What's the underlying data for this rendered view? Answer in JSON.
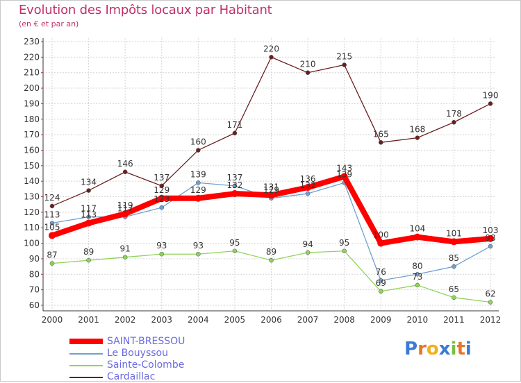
{
  "title": "Evolution des Impôts locaux par Habitant",
  "subtitle": "(en € et par an)",
  "brand": "Proxiti",
  "chart_data": {
    "type": "line",
    "title": "Evolution des Impôts locaux par Habitant",
    "subtitle": "(en € et par an)",
    "xlabel": "",
    "ylabel": "",
    "categories": [
      "2000",
      "2001",
      "2002",
      "2003",
      "2004",
      "2005",
      "2006",
      "2007",
      "2008",
      "2009",
      "2010",
      "2011",
      "2012"
    ],
    "ylim": [
      60,
      230
    ],
    "yticks": [
      60,
      70,
      80,
      90,
      100,
      110,
      120,
      130,
      140,
      150,
      160,
      170,
      180,
      190,
      200,
      210,
      220,
      230
    ],
    "grid": true,
    "legend_position": "bottom-left",
    "series": [
      {
        "name": "Cardaillac",
        "color": "#6b1f1f",
        "values": [
          124,
          134,
          146,
          137,
          160,
          171,
          220,
          210,
          215,
          165,
          168,
          178,
          190
        ]
      },
      {
        "name": "Sainte-Colombe",
        "color": "#8fd45a",
        "values": [
          87,
          89,
          91,
          93,
          93,
          95,
          89,
          94,
          95,
          69,
          73,
          65,
          62
        ]
      },
      {
        "name": "Le Bouyssou",
        "color": "#6e9fd0",
        "values": [
          113,
          117,
          117,
          123,
          139,
          137,
          129,
          132,
          139,
          76,
          80,
          85,
          98
        ]
      },
      {
        "name": "SAINT-BRESSOU",
        "color": "#ff0000",
        "values": [
          105,
          113,
          119,
          129,
          129,
          132,
          131,
          136,
          143,
          100,
          104,
          101,
          103
        ]
      }
    ],
    "data_labels": [
      [
        "124",
        "134",
        "146",
        "137",
        "160",
        "171",
        "220",
        "210",
        "215",
        "165",
        "168",
        "178",
        "190"
      ],
      [
        "87",
        "89",
        "91",
        "93",
        "93",
        "95",
        "89",
        "94",
        "95",
        "69",
        "73",
        "65",
        "62"
      ],
      [
        "113",
        "117",
        "117",
        "123",
        "139",
        "137",
        "129",
        "132",
        "139",
        "76",
        "80",
        "85",
        "98"
      ],
      [
        "105",
        "113",
        "119",
        "129",
        "129",
        "132",
        "131",
        "136",
        "143",
        "100",
        "104",
        "101",
        "103"
      ]
    ]
  },
  "legend": [
    {
      "name": "SAINT-BRESSOU",
      "color": "#ff0000",
      "thick": true
    },
    {
      "name": "Le Bouyssou",
      "color": "#6e9fd0",
      "thick": false
    },
    {
      "name": "Sainte-Colombe",
      "color": "#8fd45a",
      "thick": false
    },
    {
      "name": "Cardaillac",
      "color": "#6b1f1f",
      "thick": false
    }
  ]
}
